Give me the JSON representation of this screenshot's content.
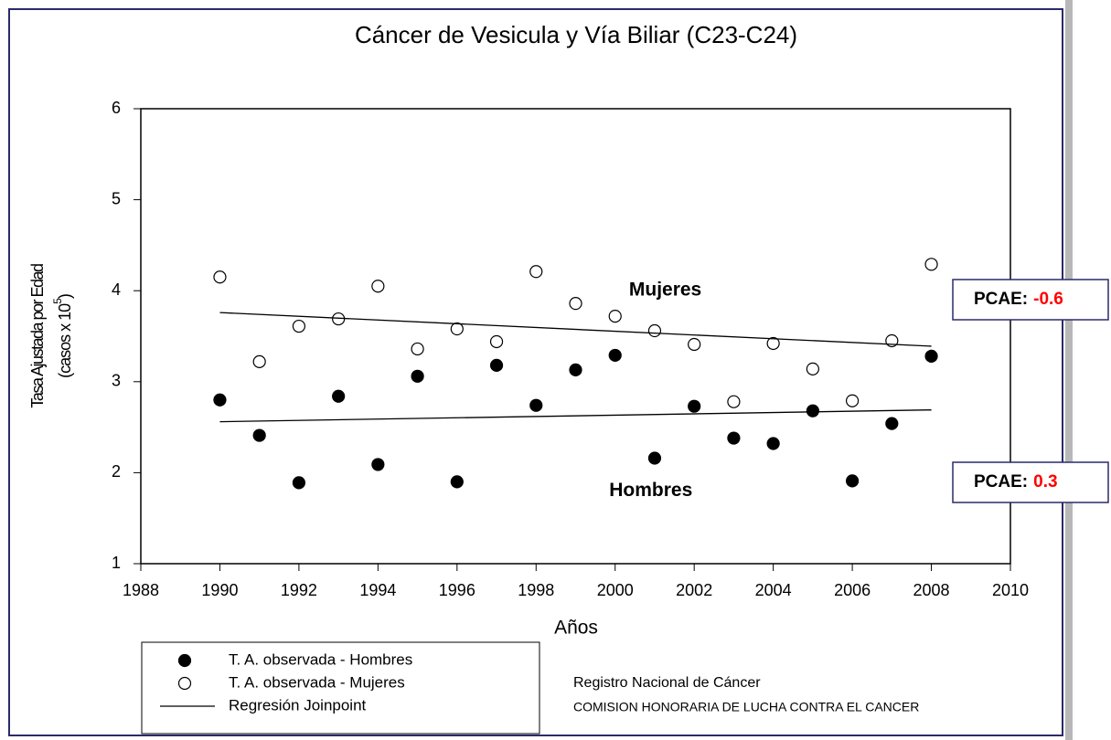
{
  "chart_data": {
    "type": "scatter",
    "title": "Cáncer de Vesicula y Vía Biliar (C23-C24)",
    "x_label": "Años",
    "y_label": "Tasa Ajustada por Edad",
    "y_label_unit": [
      "(casos x 10",
      "5",
      ")"
    ],
    "xlim": [
      1988,
      2010
    ],
    "xticks": [
      1988,
      1990,
      1992,
      1994,
      1996,
      1998,
      2000,
      2002,
      2004,
      2006,
      2008,
      2010
    ],
    "ylim": [
      1,
      6
    ],
    "yticks": [
      1,
      2,
      3,
      4,
      5,
      6
    ],
    "x": [
      1990,
      1991,
      1992,
      1993,
      1994,
      1995,
      1996,
      1997,
      1998,
      1999,
      2000,
      2001,
      2002,
      2003,
      2004,
      2005,
      2006,
      2007,
      2008
    ],
    "series": [
      {
        "name": "T. A. observada - Hombres",
        "color": "#000000",
        "marker": "filled",
        "values": [
          2.8,
          2.41,
          1.89,
          2.84,
          2.09,
          3.06,
          1.9,
          3.18,
          2.74,
          3.13,
          3.29,
          2.16,
          2.73,
          2.38,
          2.32,
          2.68,
          1.91,
          2.54,
          3.28
        ]
      },
      {
        "name": "T. A. observada - Mujeres",
        "color": "#000000",
        "marker": "hollow",
        "values": [
          4.15,
          3.22,
          3.61,
          3.69,
          4.05,
          3.36,
          3.58,
          3.44,
          4.21,
          3.86,
          3.72,
          3.56,
          3.41,
          2.78,
          3.42,
          3.14,
          2.79,
          3.45,
          4.29
        ]
      }
    ],
    "regression": {
      "name": "Regresión Joinpoint",
      "color": "#000000",
      "lines": [
        {
          "x": [
            1990,
            2008
          ],
          "values": [
            3.76,
            3.39
          ]
        },
        {
          "x": [
            1990,
            2008
          ],
          "values": [
            2.56,
            2.69
          ]
        }
      ]
    },
    "annotations": [
      {
        "text": "Mujeres",
        "x": 1998.5,
        "y": 4
      },
      {
        "text": "Hombres",
        "x": 1998,
        "y": 1.8
      }
    ],
    "pcae": [
      {
        "label": "PCAE:",
        "value": -0.6
      },
      {
        "label": "PCAE:",
        "value": 0.3
      }
    ],
    "source": [
      "Registro Nacional de Cáncer",
      "COMISION HONORARIA DE LUCHA CONTRA EL CANCER"
    ]
  }
}
